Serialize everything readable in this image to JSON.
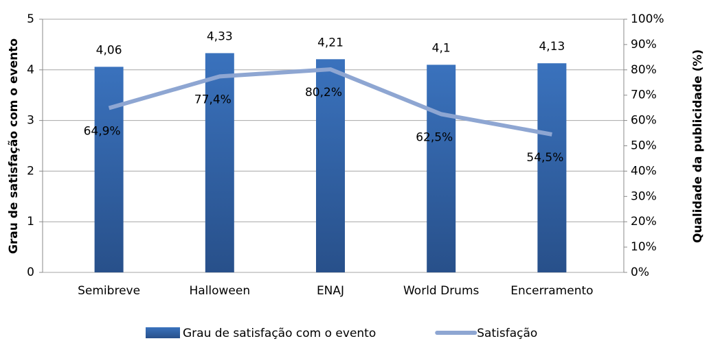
{
  "chart_data": {
    "type": "bar",
    "categories": [
      "Semibreve",
      "Halloween",
      "ENAJ",
      "World Drums",
      "Encerramento"
    ],
    "series": [
      {
        "name": "Grau de satisfação com o evento",
        "type": "bar",
        "color": "#3567ad",
        "values": [
          4.06,
          4.33,
          4.21,
          4.1,
          4.13
        ],
        "value_labels": [
          "4,06",
          "4,33",
          "4,21",
          "4,1",
          "4,13"
        ]
      },
      {
        "name": "Satisfação",
        "type": "line",
        "axis": "y2",
        "color": "#8ea6d2",
        "values": [
          64.9,
          77.4,
          80.2,
          62.5,
          54.5
        ],
        "value_labels": [
          "64,9%",
          "77,4%",
          "80,2%",
          "62,5%",
          "54,5%"
        ]
      }
    ],
    "ylabel": "Grau de satisfação com o evento",
    "y2label": "Qualidade da publicidade (%)",
    "ylim": [
      0,
      5
    ],
    "yticks": [
      0,
      1,
      2,
      3,
      4,
      5
    ],
    "y2lim": [
      0,
      100
    ],
    "y2ticks": [
      {
        "value": 0,
        "label": "0%"
      },
      {
        "value": 10,
        "label": "10%"
      },
      {
        "value": 20,
        "label": "20%"
      },
      {
        "value": 30,
        "label": "30%"
      },
      {
        "value": 40,
        "label": "40%"
      },
      {
        "value": 50,
        "label": "50%"
      },
      {
        "value": 60,
        "label": "60%"
      },
      {
        "value": 70,
        "label": "70%"
      },
      {
        "value": 80,
        "label": "80%"
      },
      {
        "value": 90,
        "label": "90%"
      },
      {
        "value": 100,
        "label": "100%"
      }
    ],
    "grid": true
  }
}
